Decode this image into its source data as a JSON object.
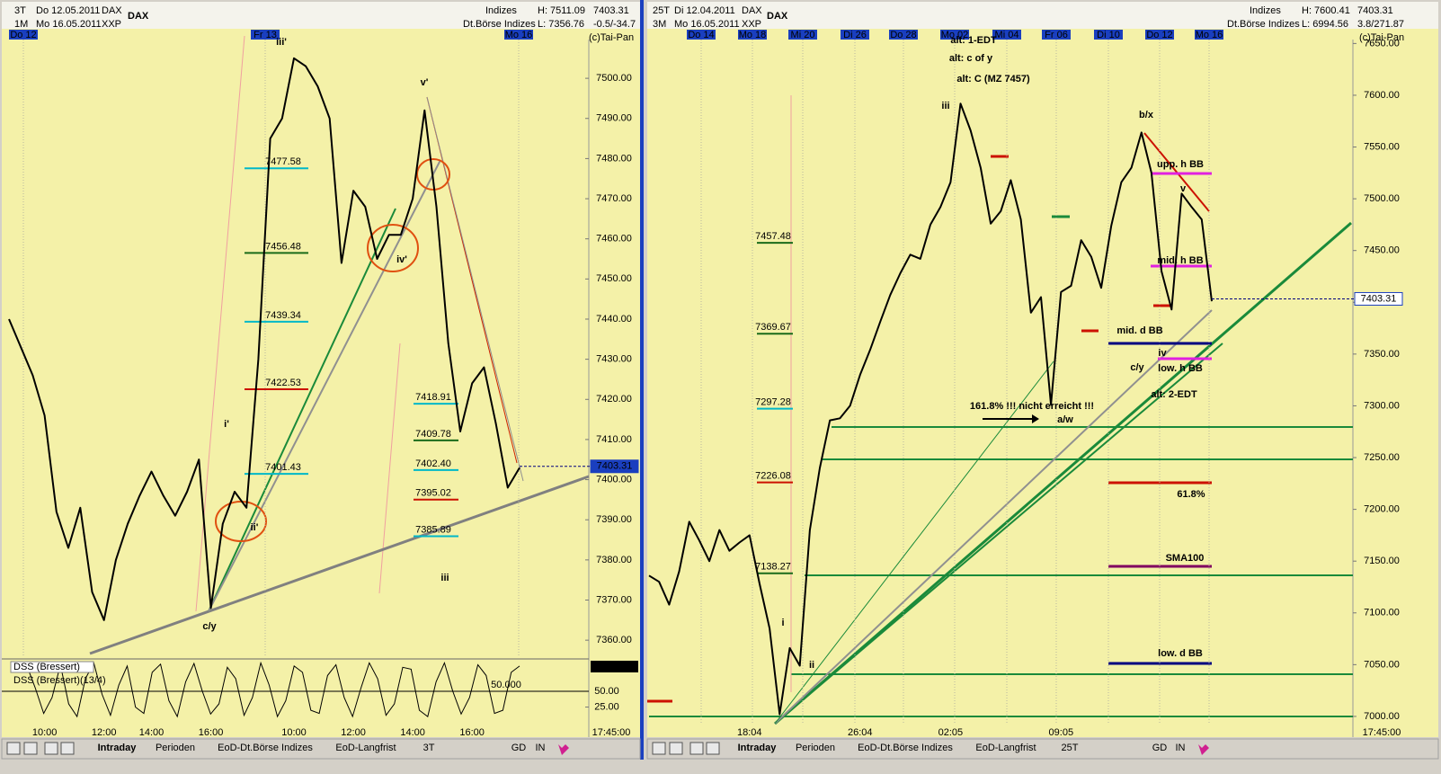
{
  "chart_data": [
    {
      "type": "line",
      "title": "DAX",
      "header_left": [
        "3T",
        "Do 12.05.2011",
        "DAX",
        "1M",
        "Mo 16.05.2011",
        "XXP"
      ],
      "header_right": [
        "Indizes",
        "Dt.Börse Indizes",
        "H: 7511.09",
        "L: 7356.76",
        "7403.31",
        "-0.5/-34.7"
      ],
      "date_markers": [
        "Do 12",
        "Fr 13",
        "Mo 16"
      ],
      "copyright": "(c)Tai-Pan",
      "time_label": "17:45:00",
      "color": "#000000",
      "categories": [
        null,
        null,
        null,
        "10:00",
        null,
        null,
        null,
        null,
        "12:00",
        null,
        null,
        null,
        "14:00",
        null,
        null,
        null,
        null,
        "16:00",
        null,
        null,
        null,
        null,
        null,
        null,
        "10:00",
        null,
        null,
        null,
        null,
        "12:00",
        null,
        null,
        null,
        null,
        "14:00",
        null,
        null,
        null,
        null,
        "16:00",
        null,
        null,
        null,
        null
      ],
      "values": [
        7440,
        7433,
        7426,
        7416,
        7392,
        7383,
        7393,
        7372,
        7365,
        7380,
        7389,
        7396,
        7402,
        7396,
        7391,
        7397,
        7405,
        7368,
        7389,
        7397,
        7393,
        7430,
        7485,
        7490,
        7505,
        7503,
        7498,
        7490,
        7454,
        7472,
        7468,
        7455,
        7461,
        7461,
        7470,
        7492,
        7468,
        7434,
        7412,
        7424,
        7428,
        7414,
        7398,
        7403
      ],
      "ylim": [
        7356,
        7511
      ],
      "yticks": [
        {
          "value": 7360,
          "label": "7360.00"
        },
        {
          "value": 7370,
          "label": "7370.00"
        },
        {
          "value": 7380,
          "label": "7380.00"
        },
        {
          "value": 7390,
          "label": "7390.00"
        },
        {
          "value": 7400,
          "label": "7400.00"
        },
        {
          "value": 7410,
          "label": "7410.00"
        },
        {
          "value": 7420,
          "label": "7420.00"
        },
        {
          "value": 7430,
          "label": "7430.00"
        },
        {
          "value": 7440,
          "label": "7440.00"
        },
        {
          "value": 7450,
          "label": "7450.00"
        },
        {
          "value": 7460,
          "label": "7460.00"
        },
        {
          "value": 7470,
          "label": "7470.00"
        },
        {
          "value": 7480,
          "label": "7480.00"
        },
        {
          "value": 7490,
          "label": "7490.00"
        },
        {
          "value": 7500,
          "label": "7500.00"
        }
      ],
      "last_value": 7403.31,
      "level_groups": [
        [
          {
            "value": 7477.58,
            "color": "#00b8c8"
          },
          {
            "value": 7456.48,
            "color": "#1a6b1a"
          },
          {
            "value": 7439.34,
            "color": "#00b8c8"
          },
          {
            "value": 7422.53,
            "color": "#cc1100"
          },
          {
            "value": 7401.43,
            "color": "#00b8c8"
          }
        ],
        [
          {
            "value": 7418.91,
            "color": "#00b8c8"
          },
          {
            "value": 7409.78,
            "color": "#1a6b1a"
          },
          {
            "value": 7402.4,
            "label": "7402.40",
            "color": "#00b8c8"
          },
          {
            "value": 7395.02,
            "color": "#cc1100"
          },
          {
            "value": 7385.89,
            "color": "#00b8c8"
          }
        ]
      ],
      "annotations": [
        {
          "text": "iii'",
          "color": "#1a8a1a"
        },
        {
          "text": "v'",
          "color": "#1a8a1a"
        },
        {
          "text": "iv'",
          "color": "#1a8a1a"
        },
        {
          "text": "i'",
          "color": "#1a8a1a"
        },
        {
          "text": "ii'",
          "color": "#1a8a1a"
        },
        {
          "text": "c/y",
          "color": "#cc1100"
        },
        {
          "text": "iii",
          "color": "#cc1100"
        }
      ],
      "oscillator": {
        "labels": [
          "DSS (Bressert)",
          "DSS (Bressert)(13/4)"
        ],
        "last_value": -89.561,
        "values": [
          90,
          55,
          15,
          40,
          92,
          30,
          10,
          70,
          95,
          45,
          12,
          60,
          90,
          25,
          15,
          80,
          93,
          35,
          10,
          65,
          94,
          50,
          14,
          30,
          88,
          70,
          12,
          40,
          95,
          60,
          10,
          35,
          90,
          80,
          20,
          15,
          75,
          92,
          40,
          10,
          55,
          95,
          70,
          12,
          30,
          88,
          85,
          20,
          10,
          65,
          95,
          50,
          14,
          40,
          92,
          75,
          15,
          20,
          80,
          90
        ],
        "ylim": [
          3,
          97
        ],
        "yticks": [
          {
            "value": 50,
            "label": "50.00"
          },
          {
            "value": 25,
            "label": "25.00"
          }
        ],
        "level": {
          "value": 50,
          "label": "50.000"
        }
      }
    },
    {
      "type": "line",
      "title": "DAX",
      "header_left": [
        "25T",
        "Di 12.04.2011",
        "DAX",
        "3M",
        "Mo 16.05.2011",
        "XXP"
      ],
      "header_right": [
        "Indizes",
        "Dt.Börse Indizes",
        "H: 7600.41",
        "L: 6994.56",
        "7403.31",
        "3.8/271.87"
      ],
      "date_markers": [
        "Do 14",
        "Mo 18",
        "Mi 20",
        "Di 26",
        "Do 28",
        "Mo 02",
        "Mi 04",
        "Fr 06",
        "Di 10",
        "Do 12",
        "Mo 16"
      ],
      "copyright": "(c)Tai-Pan",
      "time_label": "17:45:00",
      "color": "#000000",
      "categories": [
        null,
        null,
        null,
        null,
        null,
        null,
        null,
        null,
        null,
        null,
        "18:04",
        null,
        null,
        null,
        null,
        null,
        null,
        null,
        null,
        null,
        null,
        "26:04",
        null,
        null,
        null,
        null,
        null,
        null,
        null,
        null,
        "02:05",
        null,
        null,
        null,
        null,
        null,
        null,
        null,
        null,
        null,
        null,
        "09:05",
        null,
        null,
        null,
        null,
        null,
        null,
        null,
        null,
        null,
        null,
        null,
        null,
        null,
        null,
        null
      ],
      "values": [
        7136,
        7130,
        7108,
        7140,
        7188,
        7170,
        7150,
        7180,
        7160,
        7168,
        7175,
        7128,
        7085,
        7002,
        7066,
        7049,
        7180,
        7240,
        7286,
        7288,
        7300,
        7330,
        7354,
        7381,
        7407,
        7428,
        7446,
        7442,
        7475,
        7492,
        7516,
        7592,
        7566,
        7530,
        7476,
        7488,
        7518,
        7480,
        7390,
        7405,
        7301,
        7410,
        7416,
        7460,
        7444,
        7414,
        7474,
        7516,
        7530,
        7564,
        7525,
        7430,
        7393,
        7505,
        7492,
        7480,
        7401
      ],
      "ylim": [
        6993,
        7659
      ],
      "yticks": [
        {
          "value": 7000,
          "label": "7000.00"
        },
        {
          "value": 7050,
          "label": "7050.00"
        },
        {
          "value": 7100,
          "label": "7100.00"
        },
        {
          "value": 7150,
          "label": "7150.00"
        },
        {
          "value": 7200,
          "label": "7200.00"
        },
        {
          "value": 7250,
          "label": "7250.00"
        },
        {
          "value": 7300,
          "label": "7300.00"
        },
        {
          "value": 7350,
          "label": "7350.00"
        },
        {
          "value": 7400,
          "label": "7400.00"
        },
        {
          "value": 7450,
          "label": "7450.00"
        },
        {
          "value": 7500,
          "label": "7500.00"
        },
        {
          "value": 7550,
          "label": "7550.00"
        },
        {
          "value": 7600,
          "label": "7600.00"
        },
        {
          "value": 7650,
          "label": "7650.00"
        }
      ],
      "last_value": 7403.31,
      "level_groups": [
        [
          {
            "value": 7457.48,
            "color": "#1a6b1a"
          },
          {
            "value": 7369.67,
            "color": "#1a6b1a"
          },
          {
            "value": 7297.28,
            "color": "#00b8c8"
          },
          {
            "value": 7226.08,
            "color": "#cc1100"
          },
          {
            "value": 7138.27,
            "color": "#1a6b1a"
          }
        ]
      ],
      "annotations": [
        {
          "text": "alt: 1-EDT",
          "color": "#e020e0"
        },
        {
          "text": "alt: c of y",
          "color": "#e020e0"
        },
        {
          "text": "alt: C (MZ 7457)",
          "color": "#e020e0"
        },
        {
          "text": "iii",
          "color": "#1a8a1a"
        },
        {
          "text": "b/x",
          "color": "#cc1100"
        },
        {
          "text": "upp. h BB",
          "color": "#e020e0"
        },
        {
          "text": "v",
          "color": "#1a8a1a"
        },
        {
          "text": "mid. h BB",
          "color": "#e020e0"
        },
        {
          "text": "mid. d BB",
          "color": "#000080"
        },
        {
          "text": "iv",
          "color": "#1a8a1a"
        },
        {
          "text": "c/y",
          "color": "#cc1100"
        },
        {
          "text": "low. h BB",
          "color": "#e020e0"
        },
        {
          "text": "alt: 2-EDT",
          "color": "#e020e0"
        },
        {
          "text": "161.8% !!! nicht erreicht !!!",
          "color": "#000000"
        },
        {
          "text": "a/w",
          "color": "#cc1100"
        },
        {
          "text": "61.8%",
          "color": "#cc1100"
        },
        {
          "text": "SMA100",
          "color": "#800060"
        },
        {
          "text": "low. d BB",
          "color": "#000080"
        },
        {
          "text": "i",
          "color": "#1a8a1a"
        },
        {
          "text": "ii",
          "color": "#1a8a1a"
        }
      ]
    }
  ],
  "toolbars": [
    {
      "tabs": [
        "Intraday",
        "Perioden",
        "EoD-Dt.Börse Indizes",
        "EoD-Langfrist",
        "3T",
        "GD",
        "IN"
      ]
    },
    {
      "tabs": [
        "Intraday",
        "Perioden",
        "EoD-Dt.Börse Indizes",
        "EoD-Langfrist",
        "25T",
        "GD",
        "IN"
      ]
    }
  ]
}
